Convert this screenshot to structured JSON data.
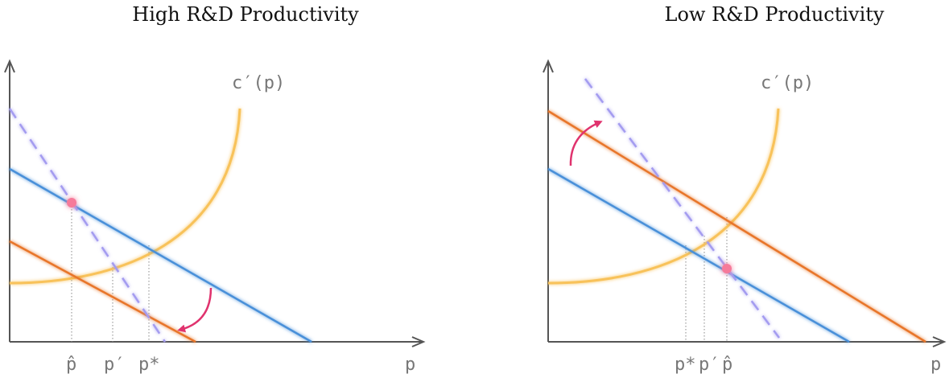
{
  "colors": {
    "axis": "#555555",
    "blue": "#4a90d9",
    "orange": "#e8762c",
    "dashed": "#a49cf0",
    "cost_curve": "#f8c25a",
    "arrow": "#e0336e",
    "dot": "#f67a9a",
    "guide": "#888888"
  },
  "left_panel": {
    "title": "High R&D Productivity",
    "curve_label": "c′(p)",
    "axis_label": "p",
    "tick_labels": [
      "p̂",
      "p′",
      "p*"
    ]
  },
  "right_panel": {
    "title": "Low R&D Productivity",
    "curve_label": "c′(p)",
    "axis_label": "p",
    "tick_labels": [
      "p*",
      "p′",
      "p̂"
    ]
  }
}
